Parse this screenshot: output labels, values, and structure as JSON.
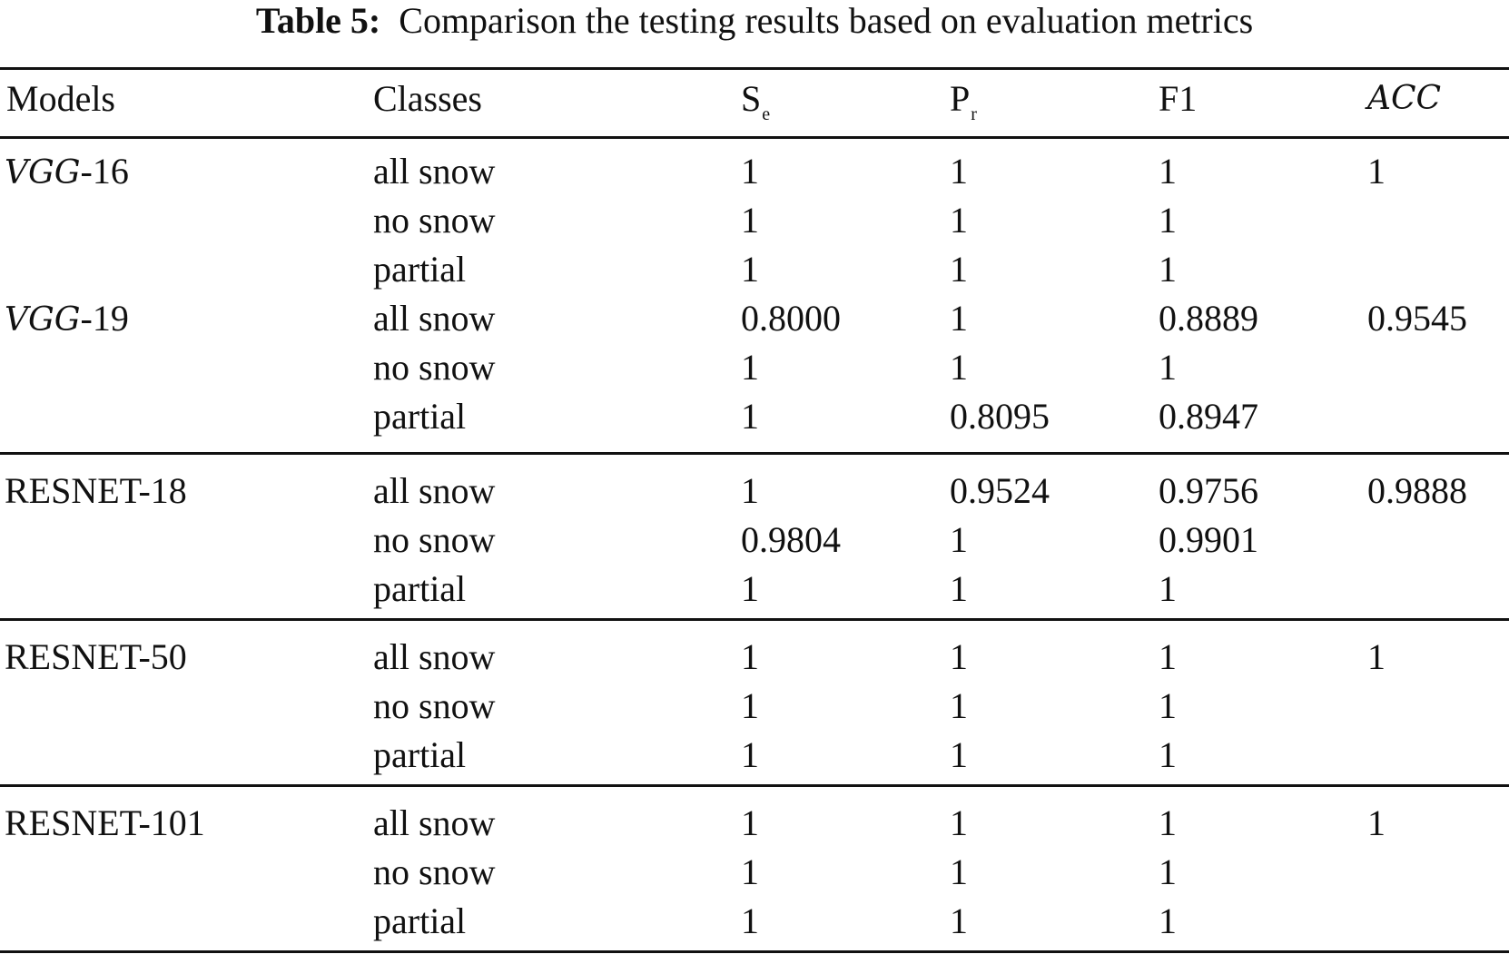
{
  "caption": {
    "label": "Table 5:",
    "text": "Comparison the testing results based on evaluation metrics"
  },
  "headers": {
    "models": "Models",
    "classes": "Classes",
    "se": {
      "main": "S",
      "sub": "e"
    },
    "pr": {
      "main": "P",
      "sub": "r"
    },
    "f1": "F1",
    "acc": "ACC"
  },
  "groups": [
    {
      "rows": [
        {
          "model": {
            "script": "VGG",
            "rest": "-16"
          },
          "cls": "all snow",
          "se": "1",
          "pr": "1",
          "f1": "1",
          "acc": "1"
        },
        {
          "cls": "no snow",
          "se": "1",
          "pr": "1",
          "f1": "1"
        },
        {
          "cls": "partial",
          "se": "1",
          "pr": "1",
          "f1": "1"
        },
        {
          "model": {
            "script": "VGG",
            "rest": "-19"
          },
          "cls": "all snow",
          "se": "0.8000",
          "pr": "1",
          "f1": "0.8889",
          "acc": "0.9545"
        },
        {
          "cls": "no snow",
          "se": "1",
          "pr": "1",
          "f1": "1"
        },
        {
          "cls": "partial",
          "se": "1",
          "pr": "0.8095",
          "f1": "0.8947"
        }
      ]
    },
    {
      "rows": [
        {
          "model": {
            "rest": "RESNET-18"
          },
          "cls": "all snow",
          "se": "1",
          "pr": "0.9524",
          "f1": "0.9756",
          "acc": "0.9888"
        },
        {
          "cls": "no snow",
          "se": "0.9804",
          "pr": "1",
          "f1": "0.9901"
        },
        {
          "cls": "partial",
          "se": "1",
          "pr": "1",
          "f1": "1"
        }
      ]
    },
    {
      "rows": [
        {
          "model": {
            "rest": "RESNET-50"
          },
          "cls": "all snow",
          "se": "1",
          "pr": "1",
          "f1": "1",
          "acc": "1"
        },
        {
          "cls": "no snow",
          "se": "1",
          "pr": "1",
          "f1": "1"
        },
        {
          "cls": "partial",
          "se": "1",
          "pr": "1",
          "f1": "1"
        }
      ]
    },
    {
      "rows": [
        {
          "model": {
            "rest": "RESNET-101"
          },
          "cls": "all snow",
          "se": "1",
          "pr": "1",
          "f1": "1",
          "acc": "1"
        },
        {
          "cls": "no snow",
          "se": "1",
          "pr": "1",
          "f1": "1"
        },
        {
          "cls": "partial",
          "se": "1",
          "pr": "1",
          "f1": "1"
        }
      ]
    }
  ]
}
